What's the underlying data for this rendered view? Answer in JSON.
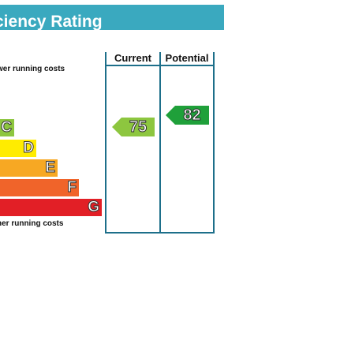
{
  "header": {
    "title": "ciency Rating"
  },
  "notes": {
    "top": "wer running costs",
    "bottom": "her running costs"
  },
  "columns": {
    "current": "Current",
    "potential": "Potential"
  },
  "bands": [
    {
      "letter": "C",
      "color": "#8dc63f"
    },
    {
      "letter": "D",
      "color": "#ffec00"
    },
    {
      "letter": "E",
      "color": "#f7a823"
    },
    {
      "letter": "F",
      "color": "#f0642a"
    },
    {
      "letter": "G",
      "color": "#e21f26"
    }
  ],
  "ratings": {
    "current": "75",
    "potential": "82"
  },
  "colors": {
    "header": "#3aa9bf",
    "grid": "#1d6f8a",
    "current_arrow": "#8dc63f",
    "potential_arrow": "#1fa03a"
  }
}
